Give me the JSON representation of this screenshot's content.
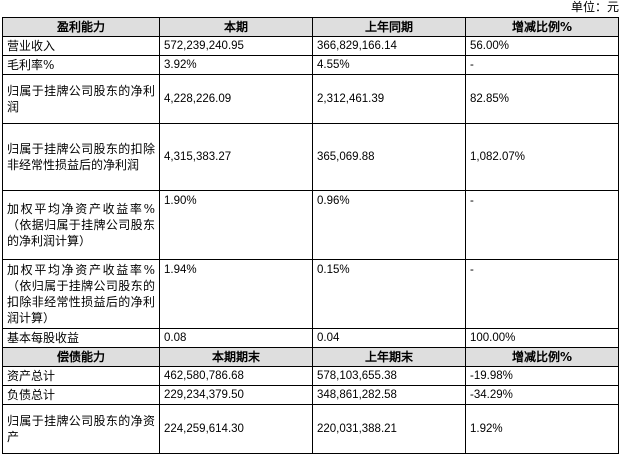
{
  "unit_label": "单位：元",
  "profit_section": {
    "headers": [
      "盈利能力",
      "本期",
      "上年同期",
      "增减比例%"
    ],
    "rows": [
      {
        "label": "营业收入",
        "current": "572,239,240.95",
        "prior": "366,829,166.14",
        "change": "56.00%"
      },
      {
        "label": "毛利率%",
        "current": "3.92%",
        "prior": "4.55%",
        "change": "-"
      },
      {
        "label": "归属于挂牌公司股东的净利润",
        "current": "4,228,226.09",
        "prior": "2,312,461.39",
        "change": "82.85%"
      },
      {
        "label": "归属于挂牌公司股东的扣除非经常性损益后的净利润",
        "current": "4,315,383.27",
        "prior": "365,069.88",
        "change": "1,082.07%"
      },
      {
        "label": "加权平均净资产收益率%（依据归属于挂牌公司股东的净利润计算）",
        "current": "1.90%",
        "prior": "0.96%",
        "change": "-"
      },
      {
        "label": "加权平均净资产收益率%（依归属于挂牌公司股东的扣除非经常性损益后的净利润计算）",
        "current": "1.94%",
        "prior": "0.15%",
        "change": "-"
      },
      {
        "label": "基本每股收益",
        "current": "0.08",
        "prior": "0.04",
        "change": "100.00%"
      }
    ]
  },
  "solvency_section": {
    "headers": [
      "偿债能力",
      "本期期末",
      "上年期末",
      "增减比例%"
    ],
    "rows": [
      {
        "label": "资产总计",
        "current": "462,580,786.68",
        "prior": "578,103,655.38",
        "change": "-19.98%"
      },
      {
        "label": "负债总计",
        "current": "229,234,379.50",
        "prior": "348,861,282.58",
        "change": "-34.29%"
      },
      {
        "label": "归属于挂牌公司股东的净资产",
        "current": "224,259,614.30",
        "prior": "220,031,388.21",
        "change": "1.92%"
      }
    ]
  }
}
